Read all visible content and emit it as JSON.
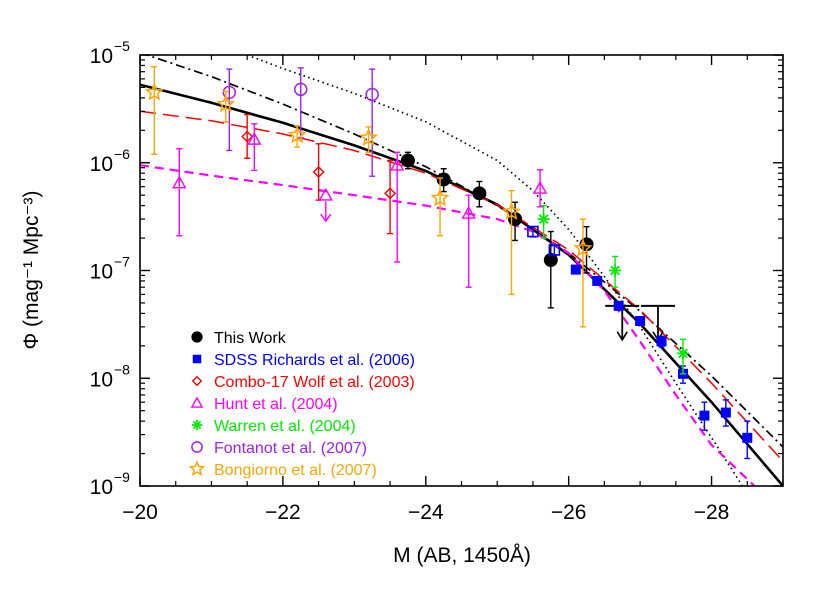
{
  "chart_data": {
    "type": "scatter",
    "xlabel": "M (AB, 1450Å)",
    "ylabel": "Φ (mag⁻¹ Mpc⁻³)",
    "xlim": [
      -20,
      -29
    ],
    "ylim": [
      1e-09,
      1e-05
    ],
    "yscale": "log",
    "x_ticks": [
      -20,
      -22,
      -24,
      -26,
      -28
    ],
    "x_tick_labels": [
      "−20",
      "−22",
      "−24",
      "−26",
      "−28"
    ],
    "y_ticks": [
      1e-09,
      1e-08,
      1e-07,
      1e-06,
      1e-05
    ],
    "y_tick_labels": [
      {
        "base": "10",
        "exp": "−9"
      },
      {
        "base": "10",
        "exp": "−8"
      },
      {
        "base": "10",
        "exp": "−7"
      },
      {
        "base": "10",
        "exp": "−6"
      },
      {
        "base": "10",
        "exp": "−5"
      }
    ],
    "legend_position": "bottom-left",
    "series": [
      {
        "name": "This Work",
        "color": "#000000",
        "marker": "filled-circle",
        "points": [
          {
            "x": -23.75,
            "y": 1.05e-06,
            "lo": 8.8e-07,
            "hi": 1.25e-06
          },
          {
            "x": -24.25,
            "y": 7e-07,
            "lo": 5.4e-07,
            "hi": 8.8e-07
          },
          {
            "x": -24.75,
            "y": 5.2e-07,
            "lo": 3.9e-07,
            "hi": 6.7e-07
          },
          {
            "x": -25.25,
            "y": 3e-07,
            "lo": 1.9e-07,
            "hi": 4.3e-07
          },
          {
            "x": -25.75,
            "y": 1.25e-07,
            "lo": 4.5e-08,
            "hi": 2.3e-07
          },
          {
            "x": -26.25,
            "y": 1.75e-07,
            "lo": 9.5e-08,
            "hi": 2.55e-07
          },
          {
            "x": -26.75,
            "y": 4.7e-08,
            "upper_limit": true
          },
          {
            "x": -27.25,
            "y": 4.7e-08,
            "upper_limit": true
          }
        ]
      },
      {
        "name": "SDSS Richards et al. (2006)",
        "color": "#0000ff",
        "marker": "filled-square",
        "points": [
          {
            "x": -25.5,
            "y": 2.3e-07,
            "lo": 2.05e-07,
            "hi": 2.55e-07,
            "open": true
          },
          {
            "x": -25.8,
            "y": 1.55e-07,
            "lo": 1.4e-07,
            "hi": 1.7e-07,
            "open": true
          },
          {
            "x": -26.1,
            "y": 1.02e-07,
            "lo": 9.3e-08,
            "hi": 1.11e-07
          },
          {
            "x": -26.4,
            "y": 8e-08,
            "lo": 7.4e-08,
            "hi": 8.6e-08
          },
          {
            "x": -26.7,
            "y": 4.7e-08,
            "lo": 4.3e-08,
            "hi": 5.1e-08
          },
          {
            "x": -27.0,
            "y": 3.4e-08,
            "lo": 3.1e-08,
            "hi": 3.7e-08
          },
          {
            "x": -27.3,
            "y": 2.2e-08,
            "lo": 1.95e-08,
            "hi": 2.45e-08
          },
          {
            "x": -27.6,
            "y": 1.1e-08,
            "lo": 9e-09,
            "hi": 1.3e-08
          },
          {
            "x": -27.9,
            "y": 4.5e-09,
            "lo": 3.3e-09,
            "hi": 6e-09
          },
          {
            "x": -28.2,
            "y": 4.8e-09,
            "lo": 3.6e-09,
            "hi": 6.3e-09
          },
          {
            "x": -28.5,
            "y": 2.8e-09,
            "lo": 1.8e-09,
            "hi": 4e-09
          }
        ]
      },
      {
        "name": "Combo-17 Wolf et al. (2003)",
        "color": "#ff0000",
        "marker": "open-diamond",
        "points": [
          {
            "x": -21.5,
            "y": 1.75e-06,
            "lo": 1.1e-06,
            "hi": 2.8e-06
          },
          {
            "x": -22.5,
            "y": 8.2e-07,
            "lo": 4.5e-07,
            "hi": 1.5e-06
          },
          {
            "x": -23.5,
            "y": 5.2e-07,
            "lo": 2.2e-07,
            "hi": 1.05e-06
          }
        ]
      },
      {
        "name": "Hunt et al. (2004)",
        "color": "#ff00ff",
        "marker": "open-triangle",
        "points": [
          {
            "x": -20.55,
            "y": 6.5e-07,
            "lo": 2.1e-07,
            "hi": 1.35e-06
          },
          {
            "x": -21.6,
            "y": 1.65e-06,
            "lo": 8.5e-07,
            "hi": 2.3e-06
          },
          {
            "x": -22.6,
            "y": 5e-07,
            "upper_limit": true
          },
          {
            "x": -23.6,
            "y": 9.5e-07,
            "lo": 1.2e-07,
            "hi": 1.25e-06
          },
          {
            "x": -24.6,
            "y": 3.4e-07,
            "lo": 7e-08,
            "hi": 5e-07
          },
          {
            "x": -25.6,
            "y": 5.8e-07,
            "lo": 3.9e-07,
            "hi": 8.6e-07
          }
        ]
      },
      {
        "name": "Warren et al. (2004)",
        "color": "#00ee00",
        "marker": "asterisk",
        "points": [
          {
            "x": -25.65,
            "y": 3e-07,
            "lo": 2e-07,
            "hi": 4e-07
          },
          {
            "x": -26.65,
            "y": 1e-07,
            "lo": 7e-08,
            "hi": 1.35e-07
          },
          {
            "x": -27.6,
            "y": 1.7e-08,
            "lo": 1.1e-08,
            "hi": 2.3e-08
          }
        ]
      },
      {
        "name": "Fontanot et al. (2007)",
        "color": "#a020f0",
        "marker": "open-circle",
        "points": [
          {
            "x": -21.25,
            "y": 4.5e-06,
            "lo": 1.3e-06,
            "hi": 7.4e-06
          },
          {
            "x": -22.25,
            "y": 4.8e-06,
            "lo": 1.7e-06,
            "hi": 7.6e-06
          },
          {
            "x": -23.25,
            "y": 4.3e-06,
            "lo": 7.5e-07,
            "hi": 7.4e-06
          }
        ]
      },
      {
        "name": "Bongiorno et al. (2007)",
        "color": "#ffa500",
        "marker": "open-star",
        "points": [
          {
            "x": -20.2,
            "y": 4.5e-06,
            "lo": 1.2e-06,
            "hi": 7.8e-06
          },
          {
            "x": -21.2,
            "y": 3.5e-06,
            "lo": 2.4e-06,
            "hi": 4.6e-06
          },
          {
            "x": -22.2,
            "y": 1.8e-06,
            "lo": 1.4e-06,
            "hi": 2.2e-06
          },
          {
            "x": -23.2,
            "y": 1.7e-06,
            "lo": 1.25e-06,
            "hi": 2.15e-06
          },
          {
            "x": -24.2,
            "y": 4.7e-07,
            "lo": 2.1e-07,
            "hi": 7.2e-07
          },
          {
            "x": -25.2,
            "y": 3.5e-07,
            "lo": 6e-08,
            "hi": 5.5e-07
          },
          {
            "x": -26.2,
            "y": 1.6e-07,
            "lo": 3e-08,
            "hi": 3e-07
          }
        ]
      }
    ],
    "curves": [
      {
        "color": "#000000",
        "style": "solid",
        "width": 2.6,
        "x": [
          -20,
          -21,
          -22,
          -23,
          -24,
          -25,
          -26,
          -27,
          -28,
          -29
        ],
        "y": [
          5.3e-06,
          3.6e-06,
          2.35e-06,
          1.45e-06,
          8.4e-07,
          4.1e-07,
          1.4e-07,
          3.2e-08,
          6e-09,
          1e-09
        ]
      },
      {
        "color": "#000000",
        "style": "dashdot",
        "width": 1.7,
        "x": [
          -20,
          -21,
          -22,
          -23,
          -24,
          -25,
          -26,
          -27,
          -28,
          -29
        ],
        "y": [
          1.05e-05,
          6.3e-06,
          3.5e-06,
          1.85e-06,
          9.2e-07,
          4e-07,
          1.45e-07,
          4.2e-08,
          1.05e-08,
          2.3e-09
        ]
      },
      {
        "color": "#000000",
        "style": "dotted",
        "width": 1.7,
        "x": [
          -21.5,
          -22,
          -23,
          -24,
          -25,
          -25.5,
          -26,
          -26.5,
          -27,
          -27.5,
          -28,
          -28.5
        ],
        "y": [
          1e-05,
          7.5e-06,
          4.4e-06,
          2.4e-06,
          1.05e-06,
          5.5e-07,
          2.4e-07,
          8.8e-08,
          3e-08,
          9e-09,
          2.8e-09,
          8.5e-10
        ]
      },
      {
        "color": "#ff0000",
        "style": "longdash",
        "width": 1.5,
        "x": [
          -20,
          -21,
          -22,
          -23,
          -24,
          -25,
          -26,
          -27,
          -28,
          -29
        ],
        "y": [
          3e-06,
          2.45e-06,
          1.85e-06,
          1.3e-06,
          8e-07,
          4.1e-07,
          1.55e-07,
          4.3e-08,
          9e-09,
          1.7e-09
        ]
      },
      {
        "color": "#ff00ff",
        "style": "dash",
        "width": 2.2,
        "x": [
          -20,
          -21,
          -22,
          -23,
          -24,
          -25,
          -25.5,
          -26,
          -26.5,
          -27,
          -27.5,
          -28,
          -28.6
        ],
        "y": [
          9.5e-07,
          7.6e-07,
          6.2e-07,
          5e-07,
          4e-07,
          3e-07,
          2.3e-07,
          1.45e-07,
          6.5e-08,
          2.2e-08,
          7e-09,
          2.4e-09,
          1e-09
        ]
      }
    ]
  }
}
